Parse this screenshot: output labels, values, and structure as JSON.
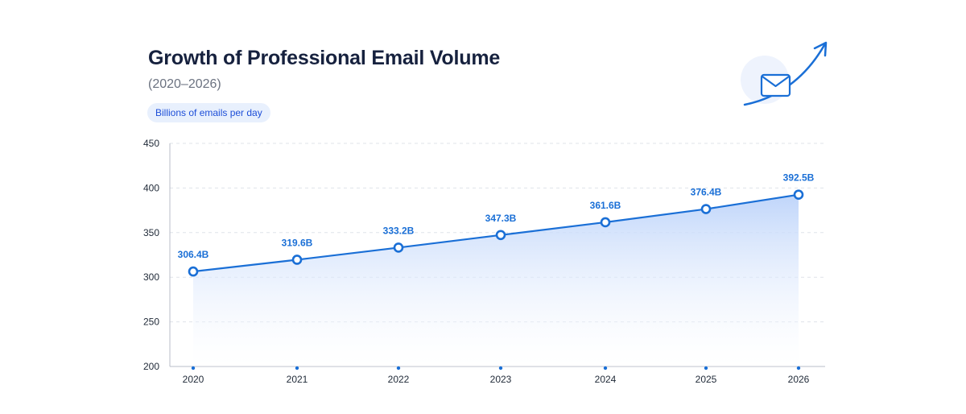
{
  "header": {
    "title": "Growth of Professional Email Volume",
    "subtitle": "(2020–2026)",
    "unit_label": "Billions of emails per day"
  },
  "icon": {
    "name": "email-growth-icon",
    "semantic": "envelope-with-upward-arrow"
  },
  "colors": {
    "accent": "#1a6fd6",
    "title": "#16213e",
    "area_top": "#c9dcfb",
    "grid": "#dfe3ea"
  },
  "chart_data": {
    "type": "area",
    "title": "Growth of Professional Email Volume",
    "subtitle": "(2020–2026)",
    "ylabel": "Billions of emails per day",
    "xlabel": "",
    "categories": [
      "2020",
      "2021",
      "2022",
      "2023",
      "2024",
      "2025",
      "2026"
    ],
    "series": [
      {
        "values": [
          306.4,
          319.6,
          333.2,
          347.3,
          361.6,
          376.4,
          392.5
        ],
        "data_labels": [
          "306.4B",
          "319.6B",
          "333.2B",
          "347.3B",
          "361.6B",
          "376.4B",
          "392.5B"
        ]
      }
    ],
    "ylim": [
      200,
      450
    ],
    "yticks": [
      200,
      250,
      300,
      350,
      400,
      450
    ],
    "grid": true,
    "legend": "none"
  }
}
